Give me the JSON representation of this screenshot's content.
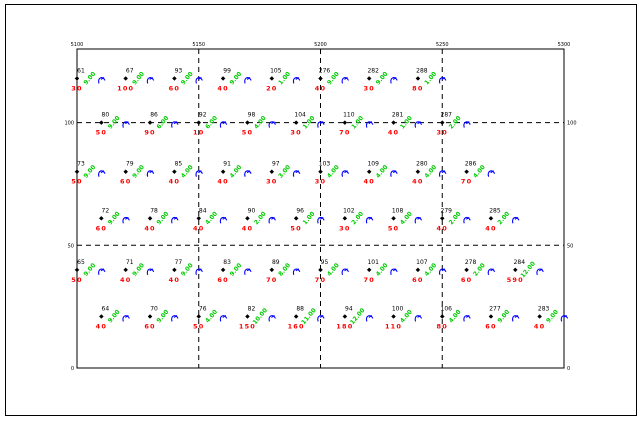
{
  "axes": {
    "x_range": [
      5100,
      5300
    ],
    "y_range": [
      0,
      130
    ],
    "x_ticks": [
      {
        "value": 5100,
        "label": "5100"
      },
      {
        "value": 5150,
        "label": "5150"
      },
      {
        "value": 5200,
        "label": "5200"
      },
      {
        "value": 5250,
        "label": "5250"
      },
      {
        "value": 5300,
        "label": "5300"
      }
    ],
    "y_ticks": [
      {
        "value": 0,
        "label": "0"
      },
      {
        "value": 50,
        "label": "50"
      },
      {
        "value": 100,
        "label": "100"
      }
    ],
    "grid_x": [
      5150,
      5200,
      5250
    ],
    "grid_y": [
      50,
      100
    ]
  },
  "colors": {
    "id": "#000000",
    "dip": "#ff0000",
    "strike": "#00cc00",
    "symbol": "#0000ff",
    "grid": "#000000"
  },
  "points": [
    {
      "id": "61",
      "x": 5100,
      "y": 118,
      "dip": "30",
      "strike": "9.00"
    },
    {
      "id": "67",
      "x": 5120,
      "y": 118,
      "dip": "100",
      "strike": "9.00"
    },
    {
      "id": "93",
      "x": 5140,
      "y": 118,
      "dip": "60",
      "strike": "9.00"
    },
    {
      "id": "99",
      "x": 5160,
      "y": 118,
      "dip": "40",
      "strike": "9.00"
    },
    {
      "id": "105",
      "x": 5180,
      "y": 118,
      "dip": "20",
      "strike": "1.00"
    },
    {
      "id": "276",
      "x": 5200,
      "y": 118,
      "dip": "40",
      "strike": "9.00"
    },
    {
      "id": "282",
      "x": 5220,
      "y": 118,
      "dip": "30",
      "strike": "9.00"
    },
    {
      "id": "288",
      "x": 5240,
      "y": 118,
      "dip": "80",
      "strike": "1.00"
    },
    {
      "id": "80",
      "x": 5110,
      "y": 100,
      "dip": "50",
      "strike": "9.00"
    },
    {
      "id": "86",
      "x": 5130,
      "y": 100,
      "dip": "90",
      "strike": "6.00"
    },
    {
      "id": "92",
      "x": 5150,
      "y": 100,
      "dip": "10",
      "strike": "6.00"
    },
    {
      "id": "98",
      "x": 5170,
      "y": 100,
      "dip": "50",
      "strike": "4.00"
    },
    {
      "id": "104",
      "x": 5190,
      "y": 100,
      "dip": "30",
      "strike": "1.00"
    },
    {
      "id": "110",
      "x": 5210,
      "y": 100,
      "dip": "70",
      "strike": "1.00"
    },
    {
      "id": "281",
      "x": 5230,
      "y": 100,
      "dip": "40",
      "strike": "1.00"
    },
    {
      "id": "287",
      "x": 5250,
      "y": 100,
      "dip": "30",
      "strike": "2.00"
    },
    {
      "id": "73",
      "x": 5100,
      "y": 80,
      "dip": "50",
      "strike": "9.00"
    },
    {
      "id": "79",
      "x": 5120,
      "y": 80,
      "dip": "60",
      "strike": "9.00"
    },
    {
      "id": "85",
      "x": 5140,
      "y": 80,
      "dip": "40",
      "strike": "4.00"
    },
    {
      "id": "91",
      "x": 5160,
      "y": 80,
      "dip": "40",
      "strike": "4.00"
    },
    {
      "id": "97",
      "x": 5180,
      "y": 80,
      "dip": "30",
      "strike": "3.00"
    },
    {
      "id": "103",
      "x": 5200,
      "y": 80,
      "dip": "30",
      "strike": "4.00"
    },
    {
      "id": "109",
      "x": 5220,
      "y": 80,
      "dip": "40",
      "strike": "4.00"
    },
    {
      "id": "280",
      "x": 5240,
      "y": 80,
      "dip": "40",
      "strike": "4.00"
    },
    {
      "id": "286",
      "x": 5260,
      "y": 80,
      "dip": "70",
      "strike": "4.00"
    },
    {
      "id": "72",
      "x": 5110,
      "y": 61,
      "dip": "60",
      "strike": "9.00"
    },
    {
      "id": "78",
      "x": 5130,
      "y": 61,
      "dip": "40",
      "strike": "9.00"
    },
    {
      "id": "84",
      "x": 5150,
      "y": 61,
      "dip": "40",
      "strike": "4.00"
    },
    {
      "id": "90",
      "x": 5170,
      "y": 61,
      "dip": "40",
      "strike": "2.00"
    },
    {
      "id": "96",
      "x": 5190,
      "y": 61,
      "dip": "50",
      "strike": "1.00"
    },
    {
      "id": "102",
      "x": 5210,
      "y": 61,
      "dip": "30",
      "strike": "2.00"
    },
    {
      "id": "108",
      "x": 5230,
      "y": 61,
      "dip": "50",
      "strike": "4.00"
    },
    {
      "id": "279",
      "x": 5250,
      "y": 61,
      "dip": "40",
      "strike": "2.00"
    },
    {
      "id": "285",
      "x": 5270,
      "y": 61,
      "dip": "40",
      "strike": "2.00"
    },
    {
      "id": "65",
      "x": 5100,
      "y": 40,
      "dip": "50",
      "strike": "9.00"
    },
    {
      "id": "71",
      "x": 5120,
      "y": 40,
      "dip": "40",
      "strike": "9.00"
    },
    {
      "id": "77",
      "x": 5140,
      "y": 40,
      "dip": "40",
      "strike": "9.00"
    },
    {
      "id": "83",
      "x": 5160,
      "y": 40,
      "dip": "60",
      "strike": "9.00"
    },
    {
      "id": "89",
      "x": 5180,
      "y": 40,
      "dip": "70",
      "strike": "8.00"
    },
    {
      "id": "95",
      "x": 5200,
      "y": 40,
      "dip": "70",
      "strike": "4.00"
    },
    {
      "id": "101",
      "x": 5220,
      "y": 40,
      "dip": "70",
      "strike": "4.00"
    },
    {
      "id": "107",
      "x": 5240,
      "y": 40,
      "dip": "60",
      "strike": "4.00"
    },
    {
      "id": "278",
      "x": 5260,
      "y": 40,
      "dip": "60",
      "strike": "2.00"
    },
    {
      "id": "284",
      "x": 5280,
      "y": 40,
      "dip": "590",
      "strike": "12.00"
    },
    {
      "id": "64",
      "x": 5110,
      "y": 21,
      "dip": "40",
      "strike": "9.00"
    },
    {
      "id": "70",
      "x": 5130,
      "y": 21,
      "dip": "60",
      "strike": "9.00"
    },
    {
      "id": "76",
      "x": 5150,
      "y": 21,
      "dip": "50",
      "strike": "4.00"
    },
    {
      "id": "82",
      "x": 5170,
      "y": 21,
      "dip": "150",
      "strike": "10.00"
    },
    {
      "id": "88",
      "x": 5190,
      "y": 21,
      "dip": "160",
      "strike": "11.00"
    },
    {
      "id": "94",
      "x": 5210,
      "y": 21,
      "dip": "180",
      "strike": "12.00"
    },
    {
      "id": "100",
      "x": 5230,
      "y": 21,
      "dip": "110",
      "strike": "4.00"
    },
    {
      "id": "106",
      "x": 5250,
      "y": 21,
      "dip": "80",
      "strike": "4.00"
    },
    {
      "id": "277",
      "x": 5270,
      "y": 21,
      "dip": "60",
      "strike": "9.00"
    },
    {
      "id": "283",
      "x": 5290,
      "y": 21,
      "dip": "40",
      "strike": "9.00"
    }
  ]
}
